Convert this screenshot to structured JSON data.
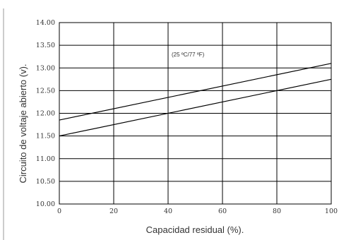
{
  "chart_data": {
    "type": "line",
    "xlabel": "Capacidad residual (%).",
    "ylabel": "Circuito de voltaje abierto (v).",
    "annotation": "(25 ºC/77 ºF)",
    "xlim": [
      0,
      100
    ],
    "ylim": [
      10.0,
      14.0
    ],
    "x_ticks": [
      "0",
      "20",
      "40",
      "60",
      "80",
      "100"
    ],
    "y_ticks": [
      "10.00",
      "10.50",
      "11.00",
      "11.50",
      "12.00",
      "12.50",
      "13.00",
      "13.50",
      "14.00"
    ],
    "grid": true,
    "series": [
      {
        "x": [
          0,
          100
        ],
        "y": [
          11.85,
          13.1
        ]
      },
      {
        "x": [
          0,
          100
        ],
        "y": [
          11.5,
          12.75
        ]
      }
    ],
    "colors": {
      "line": "#000000",
      "grid": "#000000",
      "text": "#333333"
    }
  }
}
